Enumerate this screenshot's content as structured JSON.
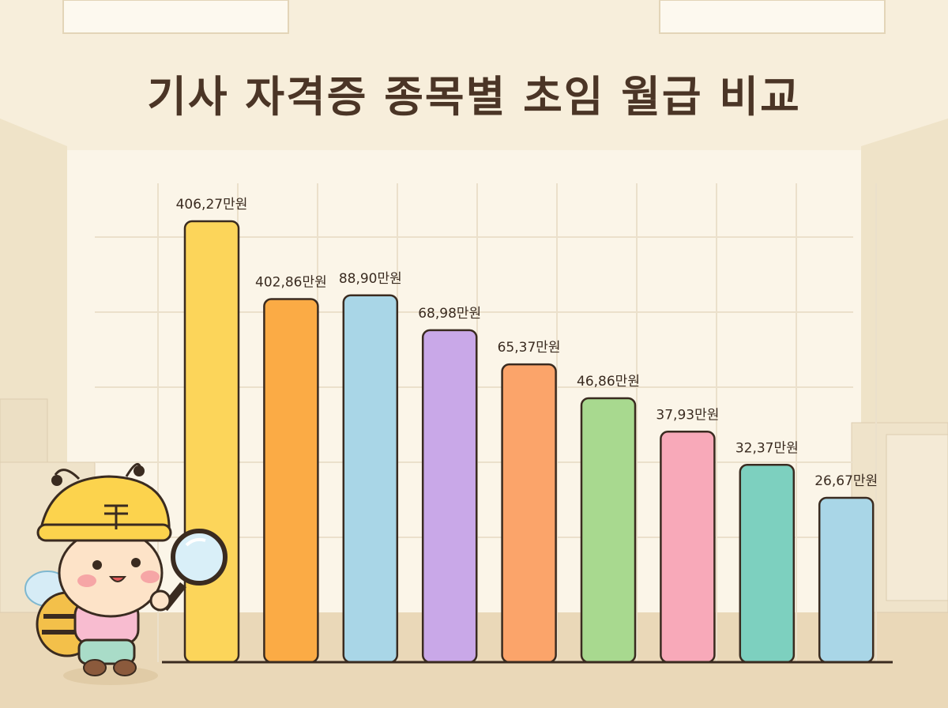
{
  "title": "기사 자격증 종목별 초임 월급 비교",
  "chart_data": {
    "type": "bar",
    "title": "기사 자격증 종목별 초임 월급 비교",
    "categories": [
      "",
      "",
      "",
      "",
      "",
      "",
      "",
      "",
      ""
    ],
    "values": [
      406.27,
      402.86,
      88.9,
      68.98,
      65.37,
      46.86,
      37.93,
      32.37,
      26.67
    ],
    "value_labels": [
      "406,27만원",
      "402,86만원",
      "88,90만원",
      "68,98만원",
      "65,37만원",
      "46,86만원",
      "37,93만원",
      "32,37만원",
      "26,67만원"
    ],
    "unit": "만원",
    "bar_colors": [
      "#fcd55a",
      "#fbab45",
      "#a9d6e7",
      "#c9a8e8",
      "#fba46a",
      "#a8d98f",
      "#f8a9b9",
      "#7dd0bf",
      "#a9d6e7"
    ],
    "grid": true,
    "legend": "none"
  },
  "colors": {
    "background": "#f6ecd6",
    "title": "#4b3526",
    "outline": "#3a2b20"
  }
}
